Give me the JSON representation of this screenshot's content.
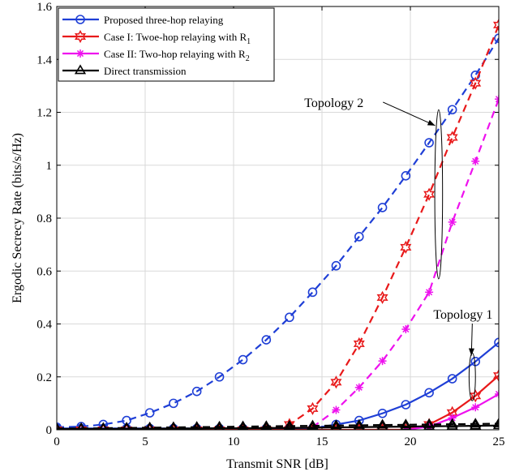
{
  "chart_data": {
    "type": "line",
    "title": "",
    "xlabel": "Transmit SNR [dB]",
    "ylabel": "Ergodic Secrecy Rate (bits/s/Hz)",
    "xlim": [
      0,
      25
    ],
    "ylim": [
      0,
      1.6
    ],
    "xticks": [
      0,
      5,
      10,
      15,
      20,
      25
    ],
    "yticks": [
      0,
      0.2,
      0.4,
      0.6,
      0.8,
      1,
      1.2,
      1.4,
      1.6
    ],
    "grid": true,
    "legend_position": "top-left",
    "legend": [
      {
        "label": "Proposed three-hop relaying",
        "color": "#1f3fd6",
        "marker": "circle"
      },
      {
        "label": "Case I: Twoe-hop relaying with R",
        "sub": "1",
        "color": "#e8191a",
        "marker": "hexagram"
      },
      {
        "label": "Case II: Two-hop relaying with R",
        "sub": "2",
        "color": "#ee11ee",
        "marker": "asterisk"
      },
      {
        "label": "Direct transmission",
        "color": "#000000",
        "marker": "triangle"
      }
    ],
    "series": [
      {
        "topology": 2,
        "color": "#1f3fd6",
        "marker": "circle",
        "dashed": true,
        "points": [
          [
            0,
            0.01
          ],
          [
            1.38,
            0.012
          ],
          [
            2.63,
            0.02
          ],
          [
            3.95,
            0.035
          ],
          [
            5.26,
            0.064
          ],
          [
            6.6,
            0.1
          ],
          [
            7.92,
            0.145
          ],
          [
            9.2,
            0.2
          ],
          [
            10.53,
            0.265
          ],
          [
            11.85,
            0.34
          ],
          [
            13.16,
            0.425
          ],
          [
            14.47,
            0.52
          ],
          [
            15.8,
            0.62
          ],
          [
            17.1,
            0.73
          ],
          [
            18.42,
            0.84
          ],
          [
            19.74,
            0.96
          ],
          [
            21.06,
            1.085
          ],
          [
            22.37,
            1.21
          ],
          [
            23.68,
            1.34
          ],
          [
            25,
            1.48
          ]
        ]
      },
      {
        "topology": 2,
        "color": "#e8191a",
        "marker": "hexagram",
        "dashed": true,
        "points": [
          [
            0,
            0
          ],
          [
            1.38,
            0
          ],
          [
            2.63,
            0
          ],
          [
            3.95,
            0
          ],
          [
            5.26,
            0
          ],
          [
            6.6,
            0
          ],
          [
            7.92,
            0
          ],
          [
            9.2,
            0
          ],
          [
            10.53,
            0
          ],
          [
            11.85,
            0
          ],
          [
            13.16,
            0.02
          ],
          [
            14.47,
            0.08
          ],
          [
            15.8,
            0.18
          ],
          [
            17.1,
            0.325
          ],
          [
            18.42,
            0.5
          ],
          [
            19.74,
            0.69
          ],
          [
            21.06,
            0.89
          ],
          [
            22.37,
            1.105
          ],
          [
            23.68,
            1.31
          ],
          [
            25,
            1.53
          ]
        ]
      },
      {
        "topology": 2,
        "color": "#ee11ee",
        "marker": "asterisk",
        "dashed": true,
        "points": [
          [
            14.47,
            0.01
          ],
          [
            15.8,
            0.075
          ],
          [
            17.1,
            0.16
          ],
          [
            18.42,
            0.26
          ],
          [
            19.74,
            0.38
          ],
          [
            21.06,
            0.52
          ],
          [
            22.37,
            0.785
          ],
          [
            23.68,
            1.015
          ],
          [
            25,
            1.25
          ]
        ]
      },
      {
        "topology": 1,
        "color": "#1f3fd6",
        "marker": "circle",
        "dashed": false,
        "points": [
          [
            0,
            0.005
          ],
          [
            1.38,
            0.005
          ],
          [
            2.63,
            0.005
          ],
          [
            3.95,
            0.005
          ],
          [
            5.26,
            0.005
          ],
          [
            6.6,
            0.005
          ],
          [
            7.92,
            0.005
          ],
          [
            9.2,
            0.005
          ],
          [
            10.53,
            0.005
          ],
          [
            11.85,
            0.005
          ],
          [
            13.16,
            0.005
          ],
          [
            14.47,
            0.005
          ],
          [
            15.8,
            0.02
          ],
          [
            17.1,
            0.035
          ],
          [
            18.42,
            0.062
          ],
          [
            19.74,
            0.095
          ],
          [
            21.06,
            0.14
          ],
          [
            22.37,
            0.193
          ],
          [
            23.68,
            0.258
          ],
          [
            25,
            0.33
          ]
        ]
      },
      {
        "topology": 1,
        "color": "#e8191a",
        "marker": "hexagram",
        "dashed": false,
        "points": [
          [
            0,
            0
          ],
          [
            1.38,
            0
          ],
          [
            2.63,
            0
          ],
          [
            3.95,
            0
          ],
          [
            5.26,
            0
          ],
          [
            6.6,
            0
          ],
          [
            7.92,
            0
          ],
          [
            9.2,
            0
          ],
          [
            10.53,
            0
          ],
          [
            11.85,
            0
          ],
          [
            13.16,
            0
          ],
          [
            14.47,
            0
          ],
          [
            15.8,
            0
          ],
          [
            17.1,
            0
          ],
          [
            18.42,
            0
          ],
          [
            19.74,
            0
          ],
          [
            21.06,
            0.02
          ],
          [
            22.37,
            0.065
          ],
          [
            23.68,
            0.128
          ],
          [
            25,
            0.205
          ]
        ]
      },
      {
        "topology": 1,
        "color": "#ee11ee",
        "marker": "asterisk",
        "dashed": false,
        "points": [
          [
            19.74,
            0
          ],
          [
            21.06,
            0.012
          ],
          [
            22.37,
            0.045
          ],
          [
            23.68,
            0.085
          ],
          [
            25,
            0.135
          ]
        ]
      },
      {
        "topology": 1,
        "color": "#000000",
        "marker": "triangle",
        "dashed": false,
        "points": [
          [
            0,
            0.003
          ],
          [
            1.38,
            0.003
          ],
          [
            2.63,
            0.003
          ],
          [
            3.95,
            0.004
          ],
          [
            5.26,
            0.004
          ],
          [
            6.6,
            0.005
          ],
          [
            7.92,
            0.005
          ],
          [
            9.2,
            0.006
          ],
          [
            10.53,
            0.006
          ],
          [
            11.85,
            0.007
          ],
          [
            13.16,
            0.007
          ],
          [
            14.47,
            0.008
          ],
          [
            15.8,
            0.009
          ],
          [
            17.1,
            0.01
          ],
          [
            18.42,
            0.011
          ],
          [
            19.74,
            0.012
          ],
          [
            21.06,
            0.013
          ],
          [
            22.37,
            0.014
          ],
          [
            23.68,
            0.015
          ],
          [
            25,
            0.016
          ]
        ]
      },
      {
        "topology": 2,
        "color": "#000000",
        "marker": "triangle",
        "dashed": true,
        "points": [
          [
            0,
            0.005
          ],
          [
            1.38,
            0.005
          ],
          [
            2.63,
            0.006
          ],
          [
            3.95,
            0.007
          ],
          [
            5.26,
            0.008
          ],
          [
            6.6,
            0.009
          ],
          [
            7.92,
            0.01
          ],
          [
            9.2,
            0.011
          ],
          [
            10.53,
            0.012
          ],
          [
            11.85,
            0.013
          ],
          [
            13.16,
            0.014
          ],
          [
            14.47,
            0.015
          ],
          [
            15.8,
            0.016
          ],
          [
            17.1,
            0.017
          ],
          [
            18.42,
            0.018
          ],
          [
            19.74,
            0.019
          ],
          [
            21.06,
            0.02
          ],
          [
            22.37,
            0.021
          ],
          [
            23.68,
            0.022
          ],
          [
            25,
            0.023
          ]
        ]
      }
    ],
    "annotations": [
      {
        "text": "Topology 2",
        "ellipse": {
          "cx": 21.6,
          "cy": 0.89,
          "rx": 0.22,
          "ry": 0.32
        },
        "arrow_to": [
          21.4,
          1.15
        ],
        "text_at": [
          14.0,
          1.22
        ]
      },
      {
        "text": "Topology 1",
        "ellipse": {
          "cx": 23.5,
          "cy": 0.2,
          "rx": 0.18,
          "ry": 0.09
        },
        "arrow_to": [
          23.45,
          0.28
        ],
        "text_at": [
          21.3,
          0.42
        ]
      }
    ]
  }
}
